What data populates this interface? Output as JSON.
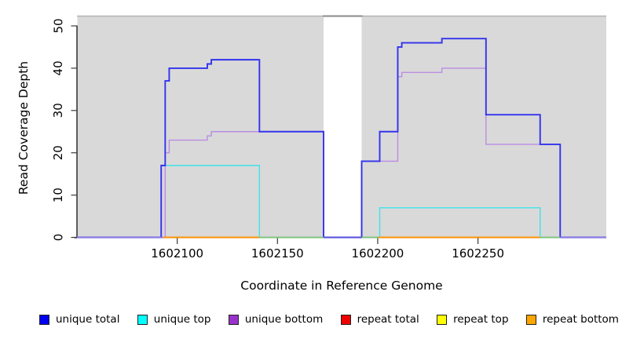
{
  "chart_data": {
    "type": "step-line",
    "title": "",
    "xlabel": "Coordinate in Reference Genome",
    "ylabel": "Read Coverage Depth",
    "xlim": [
      1602050,
      1602314
    ],
    "ylim": [
      0,
      52
    ],
    "xticks": [
      1602100,
      1602150,
      1602200,
      1602250
    ],
    "yticks": [
      0,
      10,
      20,
      30,
      40,
      50
    ],
    "plot_background": "#d9d9d9",
    "masked_region": {
      "from": 1602173,
      "to": 1602192
    },
    "series": [
      {
        "name": "repeat total",
        "line_color": "#ee0000",
        "width": 1.4,
        "steps": [
          [
            1602050,
            0
          ]
        ]
      },
      {
        "name": "repeat top",
        "line_color": "#f2f200",
        "width": 1.4,
        "steps": [
          [
            1602050,
            0
          ]
        ]
      },
      {
        "name": "repeat bottom",
        "line_color": "#ff9100",
        "width": 1.4,
        "steps": [
          [
            1602050,
            0
          ]
        ]
      },
      {
        "name": "unique bottom",
        "line_color": "#bb8ce4",
        "width": 1.4,
        "steps": [
          [
            1602050,
            0
          ],
          [
            1602094,
            20
          ],
          [
            1602096,
            23
          ],
          [
            1602115,
            24
          ],
          [
            1602117,
            25
          ],
          [
            1602173,
            0
          ],
          [
            1602192,
            18
          ],
          [
            1602210,
            38
          ],
          [
            1602212,
            39
          ],
          [
            1602232,
            40
          ],
          [
            1602254,
            22
          ],
          [
            1602291,
            0
          ]
        ]
      },
      {
        "name": "unique top",
        "line_color": "#40e2e8",
        "width": 1.4,
        "steps": [
          [
            1602050,
            0
          ],
          [
            1602092,
            17
          ],
          [
            1602141,
            0
          ],
          [
            1602201,
            7
          ],
          [
            1602281,
            0
          ]
        ]
      },
      {
        "name": "unique total",
        "line_color": "#3232ee",
        "width": 1.9,
        "steps": [
          [
            1602050,
            0
          ],
          [
            1602092,
            17
          ],
          [
            1602094,
            37
          ],
          [
            1602096,
            40
          ],
          [
            1602115,
            41
          ],
          [
            1602117,
            42
          ],
          [
            1602141,
            25
          ],
          [
            1602173,
            0
          ],
          [
            1602192,
            18
          ],
          [
            1602201,
            25
          ],
          [
            1602210,
            45
          ],
          [
            1602212,
            46
          ],
          [
            1602232,
            47
          ],
          [
            1602254,
            29
          ],
          [
            1602281,
            22
          ],
          [
            1602291,
            0
          ]
        ]
      }
    ],
    "baseline_segments": [
      {
        "from": 1602050,
        "to": 1602093,
        "color": "#8f7ce2"
      },
      {
        "from": 1602093,
        "to": 1602141,
        "color": "#ff9100"
      },
      {
        "from": 1602141,
        "to": 1602173,
        "color": "#79c77e"
      },
      {
        "from": 1602173,
        "to": 1602192,
        "color": "#5c4fd8"
      },
      {
        "from": 1602192,
        "to": 1602200,
        "color": "#79c77e"
      },
      {
        "from": 1602200,
        "to": 1602281,
        "color": "#ff9100"
      },
      {
        "from": 1602281,
        "to": 1602291,
        "color": "#79c77e"
      },
      {
        "from": 1602291,
        "to": 1602314,
        "color": "#8f7ce2"
      }
    ],
    "legend": [
      {
        "label": "unique total",
        "color": "#0000f0"
      },
      {
        "label": "unique top",
        "color": "#00ffff"
      },
      {
        "label": "unique bottom",
        "color": "#9932cc"
      },
      {
        "label": "repeat total",
        "color": "#ee0000"
      },
      {
        "label": "repeat top",
        "color": "#ffff00"
      },
      {
        "label": "repeat bottom",
        "color": "#ffa500"
      }
    ]
  }
}
